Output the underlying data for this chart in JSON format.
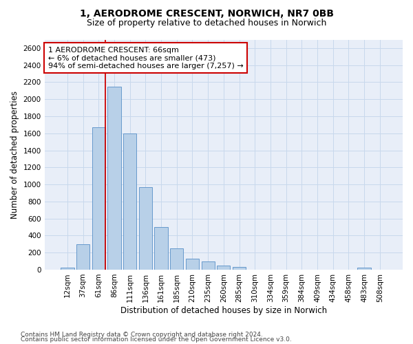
{
  "title1": "1, AERODROME CRESCENT, NORWICH, NR7 0BB",
  "title2": "Size of property relative to detached houses in Norwich",
  "xlabel": "Distribution of detached houses by size in Norwich",
  "ylabel": "Number of detached properties",
  "categories": [
    "12sqm",
    "37sqm",
    "61sqm",
    "86sqm",
    "111sqm",
    "136sqm",
    "161sqm",
    "185sqm",
    "210sqm",
    "235sqm",
    "260sqm",
    "285sqm",
    "310sqm",
    "334sqm",
    "359sqm",
    "384sqm",
    "409sqm",
    "434sqm",
    "458sqm",
    "483sqm",
    "508sqm"
  ],
  "values": [
    20,
    300,
    1670,
    2150,
    1600,
    970,
    500,
    250,
    125,
    100,
    50,
    30,
    0,
    0,
    0,
    0,
    0,
    0,
    0,
    20,
    0
  ],
  "bar_color": "#b8d0e8",
  "bar_edge_color": "#6699cc",
  "vline_color": "#cc0000",
  "vline_x": 2.5,
  "annotation_line1": "1 AERODROME CRESCENT: 66sqm",
  "annotation_line2": "← 6% of detached houses are smaller (473)",
  "annotation_line3": "94% of semi-detached houses are larger (7,257) →",
  "ann_box_edge": "#cc0000",
  "ylim_max": 2700,
  "yticks": [
    0,
    200,
    400,
    600,
    800,
    1000,
    1200,
    1400,
    1600,
    1800,
    2000,
    2200,
    2400,
    2600
  ],
  "grid_color": "#c8d8ec",
  "bg_color": "#e8eef8",
  "footer1": "Contains HM Land Registry data © Crown copyright and database right 2024.",
  "footer2": "Contains public sector information licensed under the Open Government Licence v3.0.",
  "title1_fontsize": 10,
  "title2_fontsize": 9,
  "axis_label_fontsize": 8.5,
  "tick_fontsize": 7.5,
  "ann_fontsize": 8,
  "footer_fontsize": 6.5
}
